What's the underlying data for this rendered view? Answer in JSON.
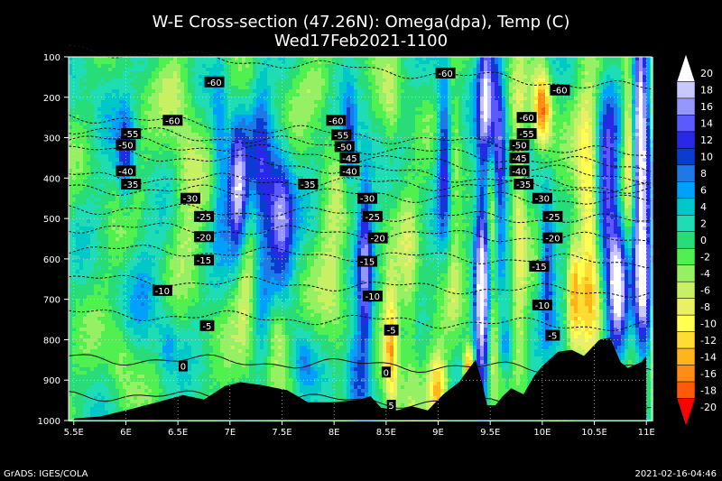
{
  "chart_data": {
    "type": "heatmap",
    "title": "W-E Cross-section (47.26N): Omega(dpa), Temp (C)",
    "subtitle": "Wed17Feb2021-1100",
    "x_ticks": [
      "5.5E",
      "6E",
      "6.5E",
      "7E",
      "7.5E",
      "8E",
      "8.5E",
      "9E",
      "9.5E",
      "10E",
      "10.5E",
      "11E"
    ],
    "x_values": [
      5.5,
      6,
      6.5,
      7,
      7.5,
      8,
      8.5,
      9,
      9.5,
      10,
      10.5,
      11
    ],
    "xlim": [
      5.45,
      11.05
    ],
    "y_ticks": [
      "100",
      "200",
      "300",
      "400",
      "500",
      "600",
      "700",
      "800",
      "900",
      "1000"
    ],
    "y_values": [
      100,
      200,
      300,
      400,
      500,
      600,
      700,
      800,
      900,
      1000
    ],
    "ylim": [
      100,
      1000
    ],
    "colorbar_ticks": [
      "20",
      "18",
      "16",
      "14",
      "12",
      "10",
      "8",
      "6",
      "4",
      "2",
      "0",
      "-2",
      "-4",
      "-6",
      "-8",
      "-10",
      "-12",
      "-14",
      "-16",
      "-18",
      "-20"
    ],
    "colorbar_colors": [
      "#ffffff",
      "#c8c8ff",
      "#9696ff",
      "#5a5aff",
      "#2828e6",
      "#0a3cd2",
      "#1e78e6",
      "#00a0ff",
      "#00c8c8",
      "#1edcb4",
      "#28dc78",
      "#50f050",
      "#96f064",
      "#c8f064",
      "#eaf064",
      "#ffff50",
      "#ffdc32",
      "#ffb41e",
      "#ff8c14",
      "#ff5a0a",
      "#ff0000"
    ],
    "isotherms": [
      {
        "label": "-60",
        "p": 125
      },
      {
        "label": "-55",
        "p": 290
      },
      {
        "label": "-50",
        "p": 320
      },
      {
        "label": "-45",
        "p": 345
      },
      {
        "label": "-40",
        "p": 375
      },
      {
        "label": "-35",
        "p": 410
      },
      {
        "label": "-30",
        "p": 440
      },
      {
        "label": "-25",
        "p": 488
      },
      {
        "label": "-20",
        "p": 535
      },
      {
        "label": "-15",
        "p": 590
      },
      {
        "label": "-10",
        "p": 665
      },
      {
        "label": "-5",
        "p": 750
      },
      {
        "label": "0",
        "p": 860
      },
      {
        "label": "5",
        "p": 950
      }
    ],
    "isotherm_labels": [
      {
        "text": "-60",
        "x": 6.85,
        "p": 162
      },
      {
        "text": "-60",
        "x": 6.45,
        "p": 257
      },
      {
        "text": "-60",
        "x": 8.02,
        "p": 257
      },
      {
        "text": "-60",
        "x": 9.07,
        "p": 140
      },
      {
        "text": "-60",
        "x": 9.85,
        "p": 250
      },
      {
        "text": "-60",
        "x": 10.17,
        "p": 182
      },
      {
        "text": "-55",
        "x": 6.05,
        "p": 290
      },
      {
        "text": "-55",
        "x": 8.07,
        "p": 293
      },
      {
        "text": "-55",
        "x": 9.85,
        "p": 290
      },
      {
        "text": "-50",
        "x": 6.0,
        "p": 318
      },
      {
        "text": "-50",
        "x": 8.1,
        "p": 322
      },
      {
        "text": "-50",
        "x": 9.78,
        "p": 318
      },
      {
        "text": "-45",
        "x": 8.15,
        "p": 350
      },
      {
        "text": "-45",
        "x": 9.78,
        "p": 350
      },
      {
        "text": "-40",
        "x": 6.0,
        "p": 382
      },
      {
        "text": "-40",
        "x": 8.15,
        "p": 382
      },
      {
        "text": "-40",
        "x": 9.78,
        "p": 382
      },
      {
        "text": "-35",
        "x": 6.05,
        "p": 415
      },
      {
        "text": "-35",
        "x": 7.75,
        "p": 415
      },
      {
        "text": "-35",
        "x": 9.82,
        "p": 415
      },
      {
        "text": "-30",
        "x": 6.62,
        "p": 450
      },
      {
        "text": "-30",
        "x": 8.32,
        "p": 450
      },
      {
        "text": "-30",
        "x": 10.0,
        "p": 450
      },
      {
        "text": "-25",
        "x": 6.75,
        "p": 495
      },
      {
        "text": "-25",
        "x": 8.37,
        "p": 495
      },
      {
        "text": "-25",
        "x": 10.1,
        "p": 495
      },
      {
        "text": "-20",
        "x": 6.75,
        "p": 545
      },
      {
        "text": "-20",
        "x": 8.42,
        "p": 548
      },
      {
        "text": "-20",
        "x": 10.1,
        "p": 548
      },
      {
        "text": "-15",
        "x": 6.75,
        "p": 603
      },
      {
        "text": "-15",
        "x": 8.32,
        "p": 606
      },
      {
        "text": "-15",
        "x": 9.97,
        "p": 618
      },
      {
        "text": "-10",
        "x": 6.35,
        "p": 678
      },
      {
        "text": "-10",
        "x": 8.37,
        "p": 692
      },
      {
        "text": "-10",
        "x": 10.0,
        "p": 714
      },
      {
        "text": "-5",
        "x": 6.78,
        "p": 765
      },
      {
        "text": "-5",
        "x": 8.55,
        "p": 776
      },
      {
        "text": "-5",
        "x": 10.1,
        "p": 789
      },
      {
        "text": "0",
        "x": 6.55,
        "p": 865
      },
      {
        "text": "0",
        "x": 8.5,
        "p": 880
      },
      {
        "text": "5",
        "x": 8.55,
        "p": 962
      }
    ],
    "terrain_p": [
      [
        5.5,
        995
      ],
      [
        5.75,
        990
      ],
      [
        6.0,
        975
      ],
      [
        6.3,
        955
      ],
      [
        6.55,
        937
      ],
      [
        6.75,
        948
      ],
      [
        6.95,
        915
      ],
      [
        7.1,
        905
      ],
      [
        7.3,
        912
      ],
      [
        7.55,
        925
      ],
      [
        7.75,
        955
      ],
      [
        8.0,
        955
      ],
      [
        8.25,
        948
      ],
      [
        8.35,
        940
      ],
      [
        8.45,
        968
      ],
      [
        8.6,
        975
      ],
      [
        8.75,
        965
      ],
      [
        8.9,
        975
      ],
      [
        9.05,
        935
      ],
      [
        9.2,
        905
      ],
      [
        9.3,
        870
      ],
      [
        9.36,
        850
      ],
      [
        9.42,
        905
      ],
      [
        9.47,
        962
      ],
      [
        9.55,
        962
      ],
      [
        9.62,
        940
      ],
      [
        9.7,
        920
      ],
      [
        9.82,
        935
      ],
      [
        9.92,
        890
      ],
      [
        10.0,
        865
      ],
      [
        10.15,
        830
      ],
      [
        10.28,
        825
      ],
      [
        10.4,
        840
      ],
      [
        10.55,
        800
      ],
      [
        10.65,
        795
      ],
      [
        10.75,
        855
      ],
      [
        10.82,
        870
      ],
      [
        10.95,
        855
      ],
      [
        11.0,
        840
      ]
    ],
    "omega_features": [
      {
        "x": 7.08,
        "p": 440,
        "sx": 0.07,
        "sp": 120,
        "v": 20
      },
      {
        "x": 7.48,
        "p": 500,
        "sx": 0.09,
        "sp": 110,
        "v": 18
      },
      {
        "x": 7.3,
        "p": 450,
        "sx": 0.07,
        "sp": 220,
        "v": 10
      },
      {
        "x": 6.9,
        "p": 330,
        "sx": 0.05,
        "sp": 150,
        "v": 8
      },
      {
        "x": 6.0,
        "p": 350,
        "sx": 0.05,
        "sp": 80,
        "v": 10
      },
      {
        "x": 8.15,
        "p": 320,
        "sx": 0.05,
        "sp": 90,
        "v": 12
      },
      {
        "x": 8.3,
        "p": 660,
        "sx": 0.05,
        "sp": 230,
        "v": 14
      },
      {
        "x": 9.06,
        "p": 330,
        "sx": 0.05,
        "sp": 140,
        "v": 14
      },
      {
        "x": 9.42,
        "p": 680,
        "sx": 0.05,
        "sp": 200,
        "v": 22
      },
      {
        "x": 9.47,
        "p": 200,
        "sx": 0.06,
        "sp": 130,
        "v": 18
      },
      {
        "x": 9.58,
        "p": 350,
        "sx": 0.05,
        "sp": 160,
        "v": 16
      },
      {
        "x": 10.05,
        "p": 600,
        "sx": 0.05,
        "sp": 120,
        "v": 12
      },
      {
        "x": 10.62,
        "p": 430,
        "sx": 0.08,
        "sp": 160,
        "v": 16
      },
      {
        "x": 10.72,
        "p": 680,
        "sx": 0.06,
        "sp": 110,
        "v": 20
      },
      {
        "x": 10.93,
        "p": 220,
        "sx": 0.06,
        "sp": 150,
        "v": 22
      },
      {
        "x": 10.92,
        "p": 480,
        "sx": 0.08,
        "sp": 160,
        "v": 16
      },
      {
        "x": 10.97,
        "p": 700,
        "sx": 0.05,
        "sp": 130,
        "v": 14
      },
      {
        "x": 10.85,
        "p": 330,
        "sx": 0.05,
        "sp": 180,
        "v": -20
      },
      {
        "x": 10.45,
        "p": 520,
        "sx": 0.08,
        "sp": 250,
        "v": -14
      },
      {
        "x": 10.3,
        "p": 680,
        "sx": 0.04,
        "sp": 100,
        "v": -12
      },
      {
        "x": 10.0,
        "p": 230,
        "sx": 0.06,
        "sp": 70,
        "v": -18
      },
      {
        "x": 9.78,
        "p": 500,
        "sx": 0.05,
        "sp": 250,
        "v": -8
      },
      {
        "x": 9.52,
        "p": 520,
        "sx": 0.04,
        "sp": 260,
        "v": -10
      },
      {
        "x": 9.15,
        "p": 450,
        "sx": 0.05,
        "sp": 200,
        "v": -6
      },
      {
        "x": 8.55,
        "p": 820,
        "sx": 0.05,
        "sp": 110,
        "v": -16
      },
      {
        "x": 8.72,
        "p": 700,
        "sx": 0.06,
        "sp": 180,
        "v": -6
      },
      {
        "x": 9.0,
        "p": 920,
        "sx": 0.06,
        "sp": 60,
        "v": -14
      },
      {
        "x": 9.3,
        "p": 870,
        "sx": 0.04,
        "sp": 40,
        "v": -18
      },
      {
        "x": 7.15,
        "p": 650,
        "sx": 0.08,
        "sp": 130,
        "v": -8
      },
      {
        "x": 7.45,
        "p": 780,
        "sx": 0.07,
        "sp": 70,
        "v": -8
      },
      {
        "x": 6.6,
        "p": 400,
        "sx": 0.1,
        "sp": 150,
        "v": -6
      },
      {
        "x": 8.0,
        "p": 600,
        "sx": 0.1,
        "sp": 200,
        "v": -5
      },
      {
        "x": 6.2,
        "p": 690,
        "sx": 0.12,
        "sp": 110,
        "v": 4
      },
      {
        "x": 7.7,
        "p": 860,
        "sx": 0.08,
        "sp": 60,
        "v": 7
      },
      {
        "x": 8.2,
        "p": 880,
        "sx": 0.06,
        "sp": 80,
        "v": 10
      },
      {
        "x": 6.4,
        "p": 810,
        "sx": 0.06,
        "sp": 50,
        "v": 5
      },
      {
        "x": 5.8,
        "p": 200,
        "sx": 0.12,
        "sp": 90,
        "v": 3
      },
      {
        "x": 6.45,
        "p": 180,
        "sx": 0.1,
        "sp": 60,
        "v": -4
      },
      {
        "x": 7.85,
        "p": 170,
        "sx": 0.12,
        "sp": 50,
        "v": -4
      },
      {
        "x": 8.55,
        "p": 250,
        "sx": 0.06,
        "sp": 90,
        "v": -5
      },
      {
        "x": 9.65,
        "p": 820,
        "sx": 0.05,
        "sp": 50,
        "v": 10
      },
      {
        "x": 5.95,
        "p": 850,
        "sx": 0.08,
        "sp": 80,
        "v": -4
      }
    ]
  },
  "footer": {
    "left": "GrADS: IGES/COLA",
    "right": "2021-02-16-04:46"
  }
}
